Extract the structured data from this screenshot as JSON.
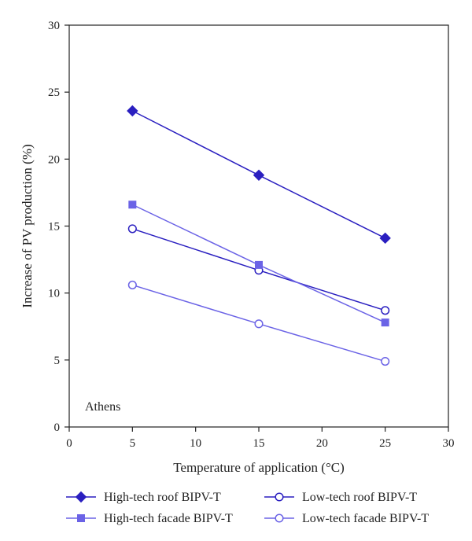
{
  "chart_data": {
    "type": "line",
    "xlabel": "Temperature of application (°C)",
    "ylabel": "Increase of PV production (%)",
    "xlim": [
      0,
      30
    ],
    "ylim": [
      0,
      30
    ],
    "xticks": [
      0,
      5,
      10,
      15,
      20,
      25,
      30
    ],
    "yticks": [
      0,
      5,
      10,
      15,
      20,
      25,
      30
    ],
    "grid": false,
    "annotation": "Athens",
    "legend_position": "bottom",
    "x": [
      5,
      15,
      25
    ],
    "series": [
      {
        "name": "High-tech roof BIPV-T",
        "values": [
          23.6,
          18.8,
          14.1
        ],
        "color": "#2a1fc0",
        "marker": "diamond-filled"
      },
      {
        "name": "Low-tech roof BIPV-T",
        "values": [
          14.8,
          11.7,
          8.7
        ],
        "color": "#2a1fc0",
        "marker": "circle-open"
      },
      {
        "name": "High-tech facade BIPV-T",
        "values": [
          16.6,
          12.1,
          7.8
        ],
        "color": "#6b63e6",
        "marker": "square-filled"
      },
      {
        "name": "Low-tech facade BIPV-T",
        "values": [
          10.6,
          7.7,
          4.9
        ],
        "color": "#6b63e6",
        "marker": "circle-open"
      }
    ]
  }
}
